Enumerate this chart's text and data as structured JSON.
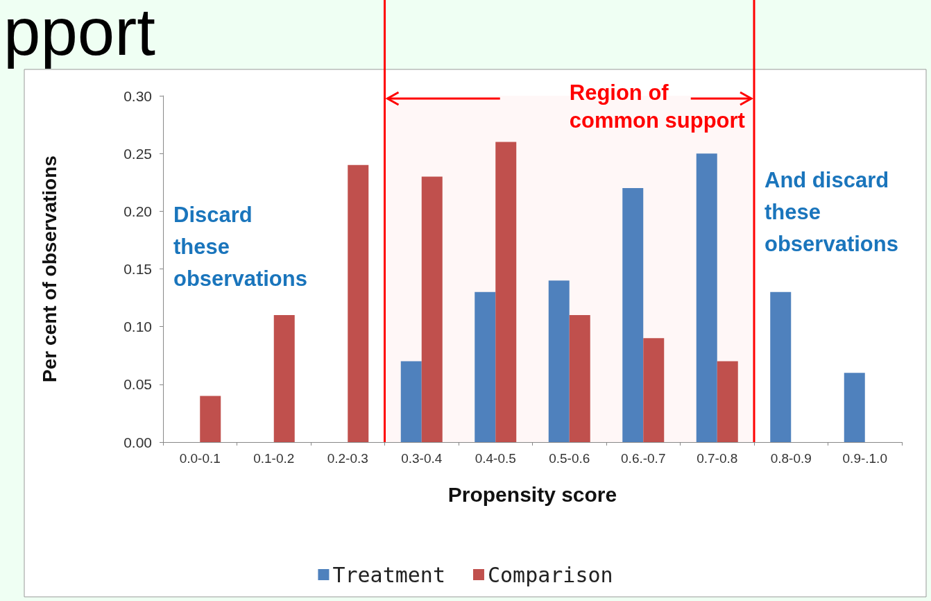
{
  "chart_data": {
    "type": "bar",
    "title": "pport",
    "xlabel": "Propensity score",
    "ylabel": "Per cent of observations",
    "categories": [
      "0.0-0.1",
      "0.1-0.2",
      "0.2-0.3",
      "0.3-0.4",
      "0.4-0.5",
      "0.5-0.6",
      "0.6.-0.7",
      "0.7-0.8",
      "0.8-0.9",
      "0.9-.1.0"
    ],
    "series": [
      {
        "name": "Treatment",
        "color": "#4f81bd",
        "values": [
          0,
          0,
          0,
          0.07,
          0.13,
          0.14,
          0.22,
          0.25,
          0.13,
          0.06
        ]
      },
      {
        "name": "Comparison",
        "color": "#c0504d",
        "values": [
          0.04,
          0.11,
          0.24,
          0.23,
          0.26,
          0.11,
          0.09,
          0.07,
          0,
          0
        ]
      }
    ],
    "ylim": [
      0,
      0.3
    ],
    "yticks": [
      {
        "value": 0,
        "label": "0.00"
      },
      {
        "value": 0.05,
        "label": "0.05"
      },
      {
        "value": 0.1,
        "label": "0.10"
      },
      {
        "value": 0.15,
        "label": "0.15"
      },
      {
        "value": 0.2,
        "label": "0.20"
      },
      {
        "value": 0.25,
        "label": "0.25"
      },
      {
        "value": 0.3,
        "label": "0.30"
      }
    ],
    "bands": [
      {
        "axis": "x",
        "from": "0.3-0.4",
        "to": "0.7-0.8",
        "label": "Region of\ncommon support",
        "color": "#ff0000"
      }
    ],
    "annotations": [
      "Discard\nthese\nobservations",
      "And discard\nthese\nobservations"
    ],
    "legend": "bottom",
    "grid": false
  }
}
